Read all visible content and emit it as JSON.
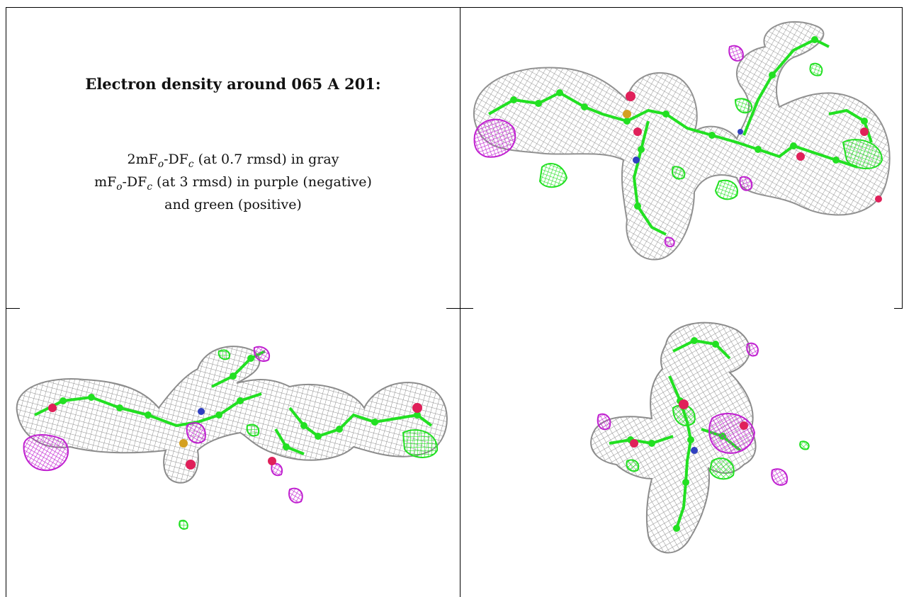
{
  "caption": {
    "title": "Electron density around 065 A 201:",
    "line1": {
      "a": "2mF",
      "sub1": "o",
      "b": "-DF",
      "sub2": "c",
      "c": " (at 0.7 rmsd) in gray"
    },
    "line2": {
      "a": "mF",
      "sub1": "o",
      "b": "-DF",
      "sub2": "c",
      "c": " (at 3 rmsd) in purple (negative)"
    },
    "line3": "and green (positive)"
  },
  "colors": {
    "mesh_gray": "#8c8c8c",
    "positive_green": "#22e022",
    "negative_purple": "#c020d0",
    "oxygen": "#e0205a",
    "nitrogen": "#3040c0",
    "sulfur": "#d4a020"
  }
}
